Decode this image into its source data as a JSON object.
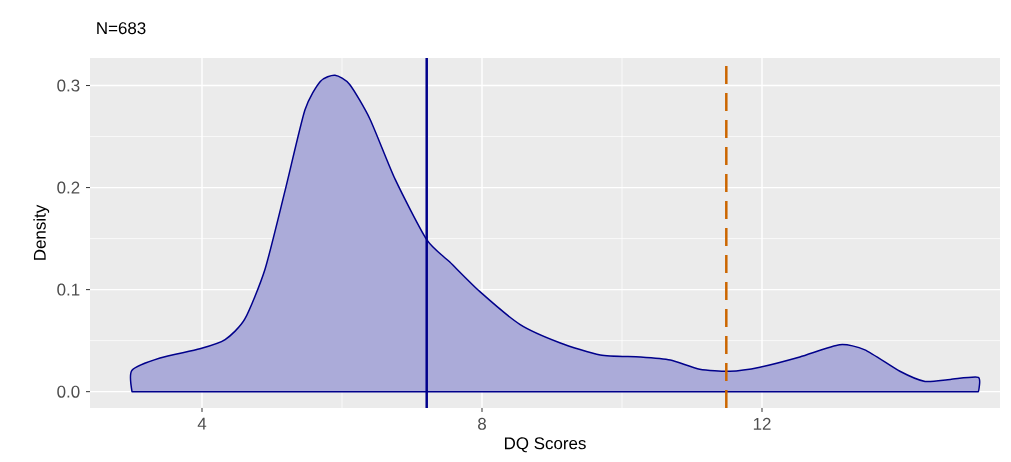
{
  "chart_data": {
    "type": "area",
    "title": "N=683",
    "xlabel": "DQ Scores",
    "ylabel": "Density",
    "x": [
      3.0,
      3.4,
      3.97,
      4.33,
      4.61,
      4.9,
      5.19,
      5.47,
      5.69,
      5.9,
      6.11,
      6.4,
      6.76,
      7.21,
      7.54,
      7.97,
      8.54,
      9.11,
      9.69,
      10.26,
      10.69,
      11.11,
      11.54,
      11.97,
      12.54,
      13.11,
      13.47,
      13.97,
      14.33,
      14.69,
      15.09
    ],
    "values": [
      0.021,
      0.033,
      0.042,
      0.051,
      0.071,
      0.12,
      0.198,
      0.276,
      0.304,
      0.31,
      0.301,
      0.267,
      0.208,
      0.149,
      0.127,
      0.098,
      0.066,
      0.048,
      0.036,
      0.034,
      0.031,
      0.022,
      0.02,
      0.024,
      0.034,
      0.046,
      0.041,
      0.02,
      0.01,
      0.012,
      0.014
    ],
    "color": "#00008b",
    "xlim": [
      2.4,
      15.4
    ],
    "ylim": [
      -0.016,
      0.327
    ],
    "xticks": [
      4,
      8,
      12
    ],
    "yticks": [
      {
        "value": 0,
        "label": "0.0"
      },
      0.1,
      0.2,
      0.3
    ],
    "grid": true,
    "ref_lines": [
      {
        "axis": "x",
        "value": 7.21,
        "color": "#00008b",
        "line_style": "solid"
      },
      {
        "axis": "x",
        "value": 11.49,
        "color": "#cc6600",
        "line_style": "dashed"
      }
    ]
  }
}
